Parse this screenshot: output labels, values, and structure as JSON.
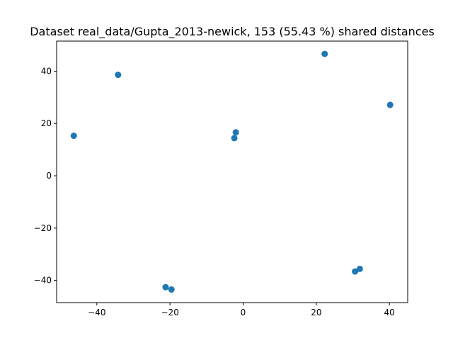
{
  "chart_data": {
    "type": "scatter",
    "title": "Dataset real_data/Gupta_2013-newick, 153 (55.43 %) shared distances",
    "xlabel": "",
    "ylabel": "",
    "xlim": [
      -51,
      45
    ],
    "ylim": [
      -48.5,
      51.5
    ],
    "xticks": [
      -40,
      -20,
      0,
      20,
      40
    ],
    "yticks": [
      -40,
      -20,
      0,
      20,
      40
    ],
    "grid": false,
    "marker_color": "#1f77b4",
    "points": [
      {
        "x": -46.3,
        "y": 15.3
      },
      {
        "x": -34.2,
        "y": 38.6
      },
      {
        "x": -2.4,
        "y": 14.4
      },
      {
        "x": -2.0,
        "y": 16.6
      },
      {
        "x": 22.3,
        "y": 46.6
      },
      {
        "x": 40.2,
        "y": 27.1
      },
      {
        "x": -21.2,
        "y": -42.6
      },
      {
        "x": -19.6,
        "y": -43.5
      },
      {
        "x": 30.6,
        "y": -36.6
      },
      {
        "x": 31.9,
        "y": -35.6
      }
    ]
  }
}
